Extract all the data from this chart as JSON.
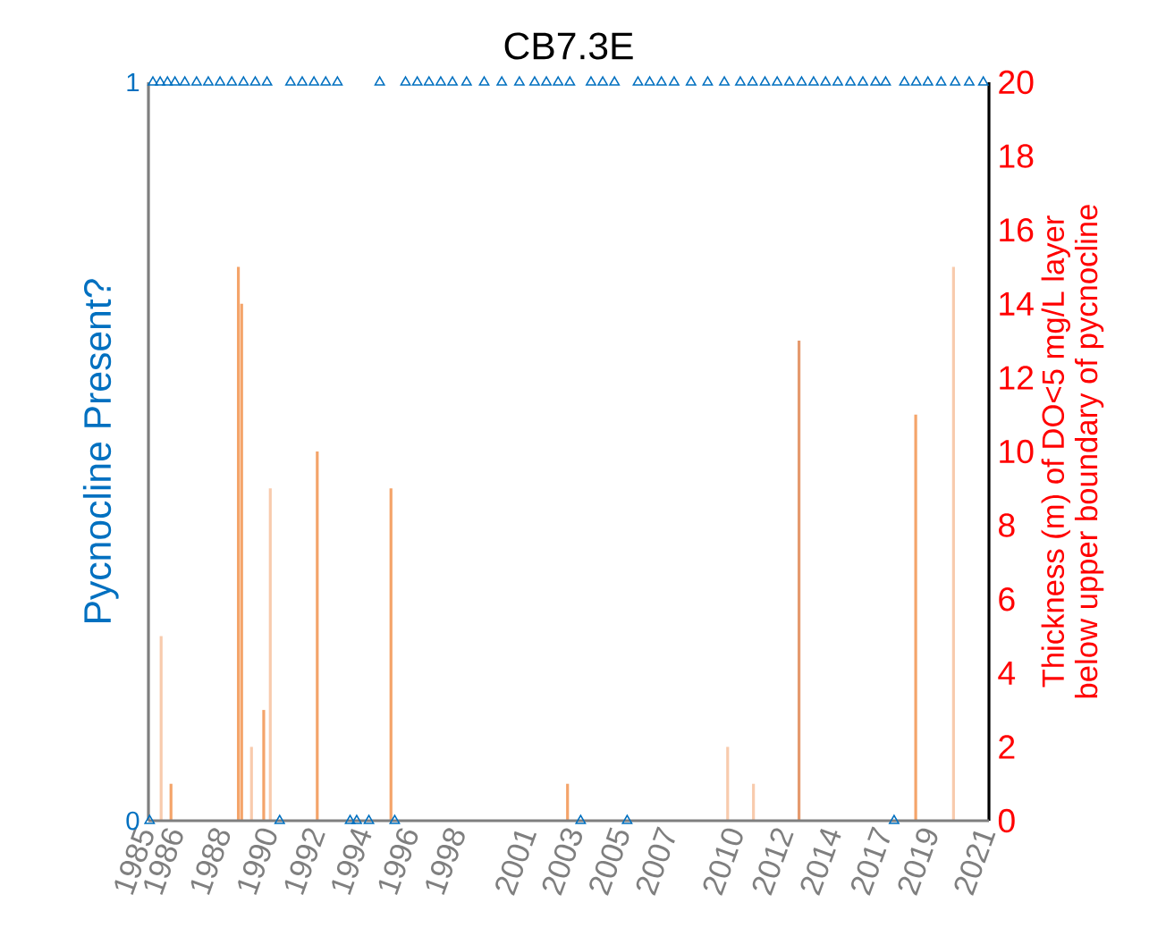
{
  "chart_data": {
    "type": "scatter",
    "title": "CB7.3E",
    "ylabel": "Pycnocline Present?",
    "y2label": "Thickness (m) of DO<5 mg/L layer\nbelow upper boundary of pycnocline",
    "xlim": [
      1985.2,
      2021.0
    ],
    "xticks": [
      {
        "value": 1985.2,
        "label": "1985"
      },
      {
        "value": 1986.45,
        "label": "1986"
      },
      {
        "value": 1988.45,
        "label": "1988"
      },
      {
        "value": 1990.45,
        "label": "1990"
      },
      {
        "value": 1992.45,
        "label": "1992"
      },
      {
        "value": 1994.45,
        "label": "1994"
      },
      {
        "value": 1996.45,
        "label": "1996"
      },
      {
        "value": 1998.45,
        "label": "1998"
      },
      {
        "value": 2001.45,
        "label": "2001"
      },
      {
        "value": 2003.45,
        "label": "2003"
      },
      {
        "value": 2005.45,
        "label": "2005"
      },
      {
        "value": 2007.45,
        "label": "2007"
      },
      {
        "value": 2010.3,
        "label": "2010"
      },
      {
        "value": 2012.4,
        "label": "2012"
      },
      {
        "value": 2014.45,
        "label": "2014"
      },
      {
        "value": 2016.6,
        "label": "2017"
      },
      {
        "value": 2018.6,
        "label": "2019"
      },
      {
        "value": 2021.0,
        "label": "2021"
      }
    ],
    "ylim": [
      0,
      1
    ],
    "yticks": [
      0,
      1
    ],
    "y2lim": [
      0,
      20
    ],
    "y2ticks": [
      0,
      2,
      4,
      6,
      8,
      10,
      12,
      14,
      16,
      18,
      20
    ],
    "grid": false,
    "series": [
      {
        "marker": "triangle",
        "color": "#0070c0",
        "x": [
          1985.25,
          1985.39,
          1985.7,
          1986.01,
          1986.33,
          1986.75,
          1987.25,
          1987.75,
          1988.25,
          1988.75,
          1989.25,
          1989.75,
          1990.25,
          1990.79,
          1991.25,
          1991.75,
          1992.25,
          1992.75,
          1993.25,
          1993.79,
          1994.07,
          1994.59,
          1995.05,
          1995.69,
          1996.15,
          1996.65,
          1997.15,
          1997.65,
          1998.15,
          1998.75,
          1999.5,
          2000.25,
          2001.0,
          2001.65,
          2002.15,
          2002.65,
          2003.15,
          2003.61,
          2004.05,
          2004.55,
          2005.05,
          2005.59,
          2006.05,
          2006.55,
          2007.05,
          2007.59,
          2008.31,
          2009.02,
          2009.73,
          2010.41,
          2010.93,
          2011.46,
          2011.98,
          2012.5,
          2013.02,
          2013.53,
          2014.04,
          2014.56,
          2015.1,
          2015.63,
          2016.17,
          2016.6,
          2016.96,
          2017.4,
          2017.9,
          2018.4,
          2018.96,
          2019.56,
          2020.16,
          2020.76
        ],
        "values": [
          0,
          1,
          1,
          1,
          1,
          1,
          1,
          1,
          1,
          1,
          1,
          1,
          1,
          0,
          1,
          1,
          1,
          1,
          1,
          0,
          0,
          0,
          1,
          0,
          1,
          1,
          1,
          1,
          1,
          1,
          1,
          1,
          1,
          1,
          1,
          1,
          1,
          0,
          1,
          1,
          1,
          0,
          1,
          1,
          1,
          1,
          1,
          1,
          1,
          1,
          1,
          1,
          1,
          1,
          1,
          1,
          1,
          1,
          1,
          1,
          1,
          1,
          0,
          1,
          1,
          1,
          1,
          1,
          1,
          1
        ]
      },
      {
        "type": "bar",
        "axis": "y2",
        "x": [
          1985.74,
          1986.16,
          1989.03,
          1989.17,
          1989.59,
          1990.11,
          1990.39,
          1992.39,
          1995.53,
          2003.05,
          2009.87,
          2010.97,
          2012.91,
          2017.88,
          2019.49
        ],
        "values": [
          5,
          1,
          15,
          14,
          2,
          3,
          9,
          10,
          9,
          1,
          2,
          1,
          13,
          11,
          15
        ],
        "colors": [
          "#f8cbad",
          "#f4a46a",
          "#f4a46a",
          "#f4a46a",
          "#f8cbad",
          "#f4a46a",
          "#f8cbad",
          "#f4a46a",
          "#f4a46a",
          "#f4a46a",
          "#f8cbad",
          "#f8cbad",
          "#e59a6e",
          "#f4a46a",
          "#f8cbad"
        ]
      }
    ]
  }
}
